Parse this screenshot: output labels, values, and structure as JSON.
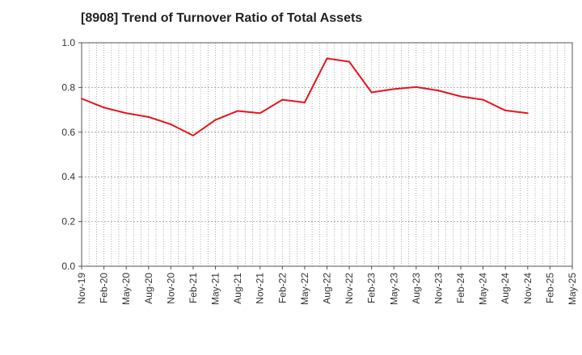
{
  "chart_data": {
    "type": "line",
    "title": "[8908]  Trend of Turnover Ratio of Total Assets",
    "xlabel": "",
    "ylabel": "",
    "ylim": [
      0,
      1.0
    ],
    "yticks": [
      "0.0",
      "0.2",
      "0.4",
      "0.6",
      "0.8",
      "1.0"
    ],
    "x_tick_labels": [
      "Nov-19",
      "Feb-20",
      "May-20",
      "Aug-20",
      "Nov-20",
      "Feb-21",
      "May-21",
      "Aug-21",
      "Nov-21",
      "Feb-22",
      "May-22",
      "Aug-22",
      "Nov-22",
      "Feb-23",
      "May-23",
      "Aug-23",
      "Nov-23",
      "Feb-24",
      "May-24",
      "Aug-24",
      "Nov-24",
      "Feb-25",
      "May-25"
    ],
    "grid": true,
    "series": [
      {
        "color": "#e8141c",
        "x": [
          "Nov-19",
          "Feb-20",
          "May-20",
          "Aug-20",
          "Nov-20",
          "Feb-21",
          "May-21",
          "Aug-21",
          "Nov-21",
          "Feb-22",
          "May-22",
          "Aug-22",
          "Nov-22",
          "Feb-23",
          "May-23",
          "Aug-23",
          "Nov-23",
          "Feb-24",
          "May-24",
          "Aug-24",
          "Nov-24"
        ],
        "values": [
          0.75,
          0.71,
          0.685,
          0.668,
          0.635,
          0.585,
          0.655,
          0.695,
          0.685,
          0.745,
          0.733,
          0.93,
          0.915,
          0.778,
          0.793,
          0.802,
          0.786,
          0.76,
          0.745,
          0.697,
          0.685
        ]
      }
    ]
  }
}
